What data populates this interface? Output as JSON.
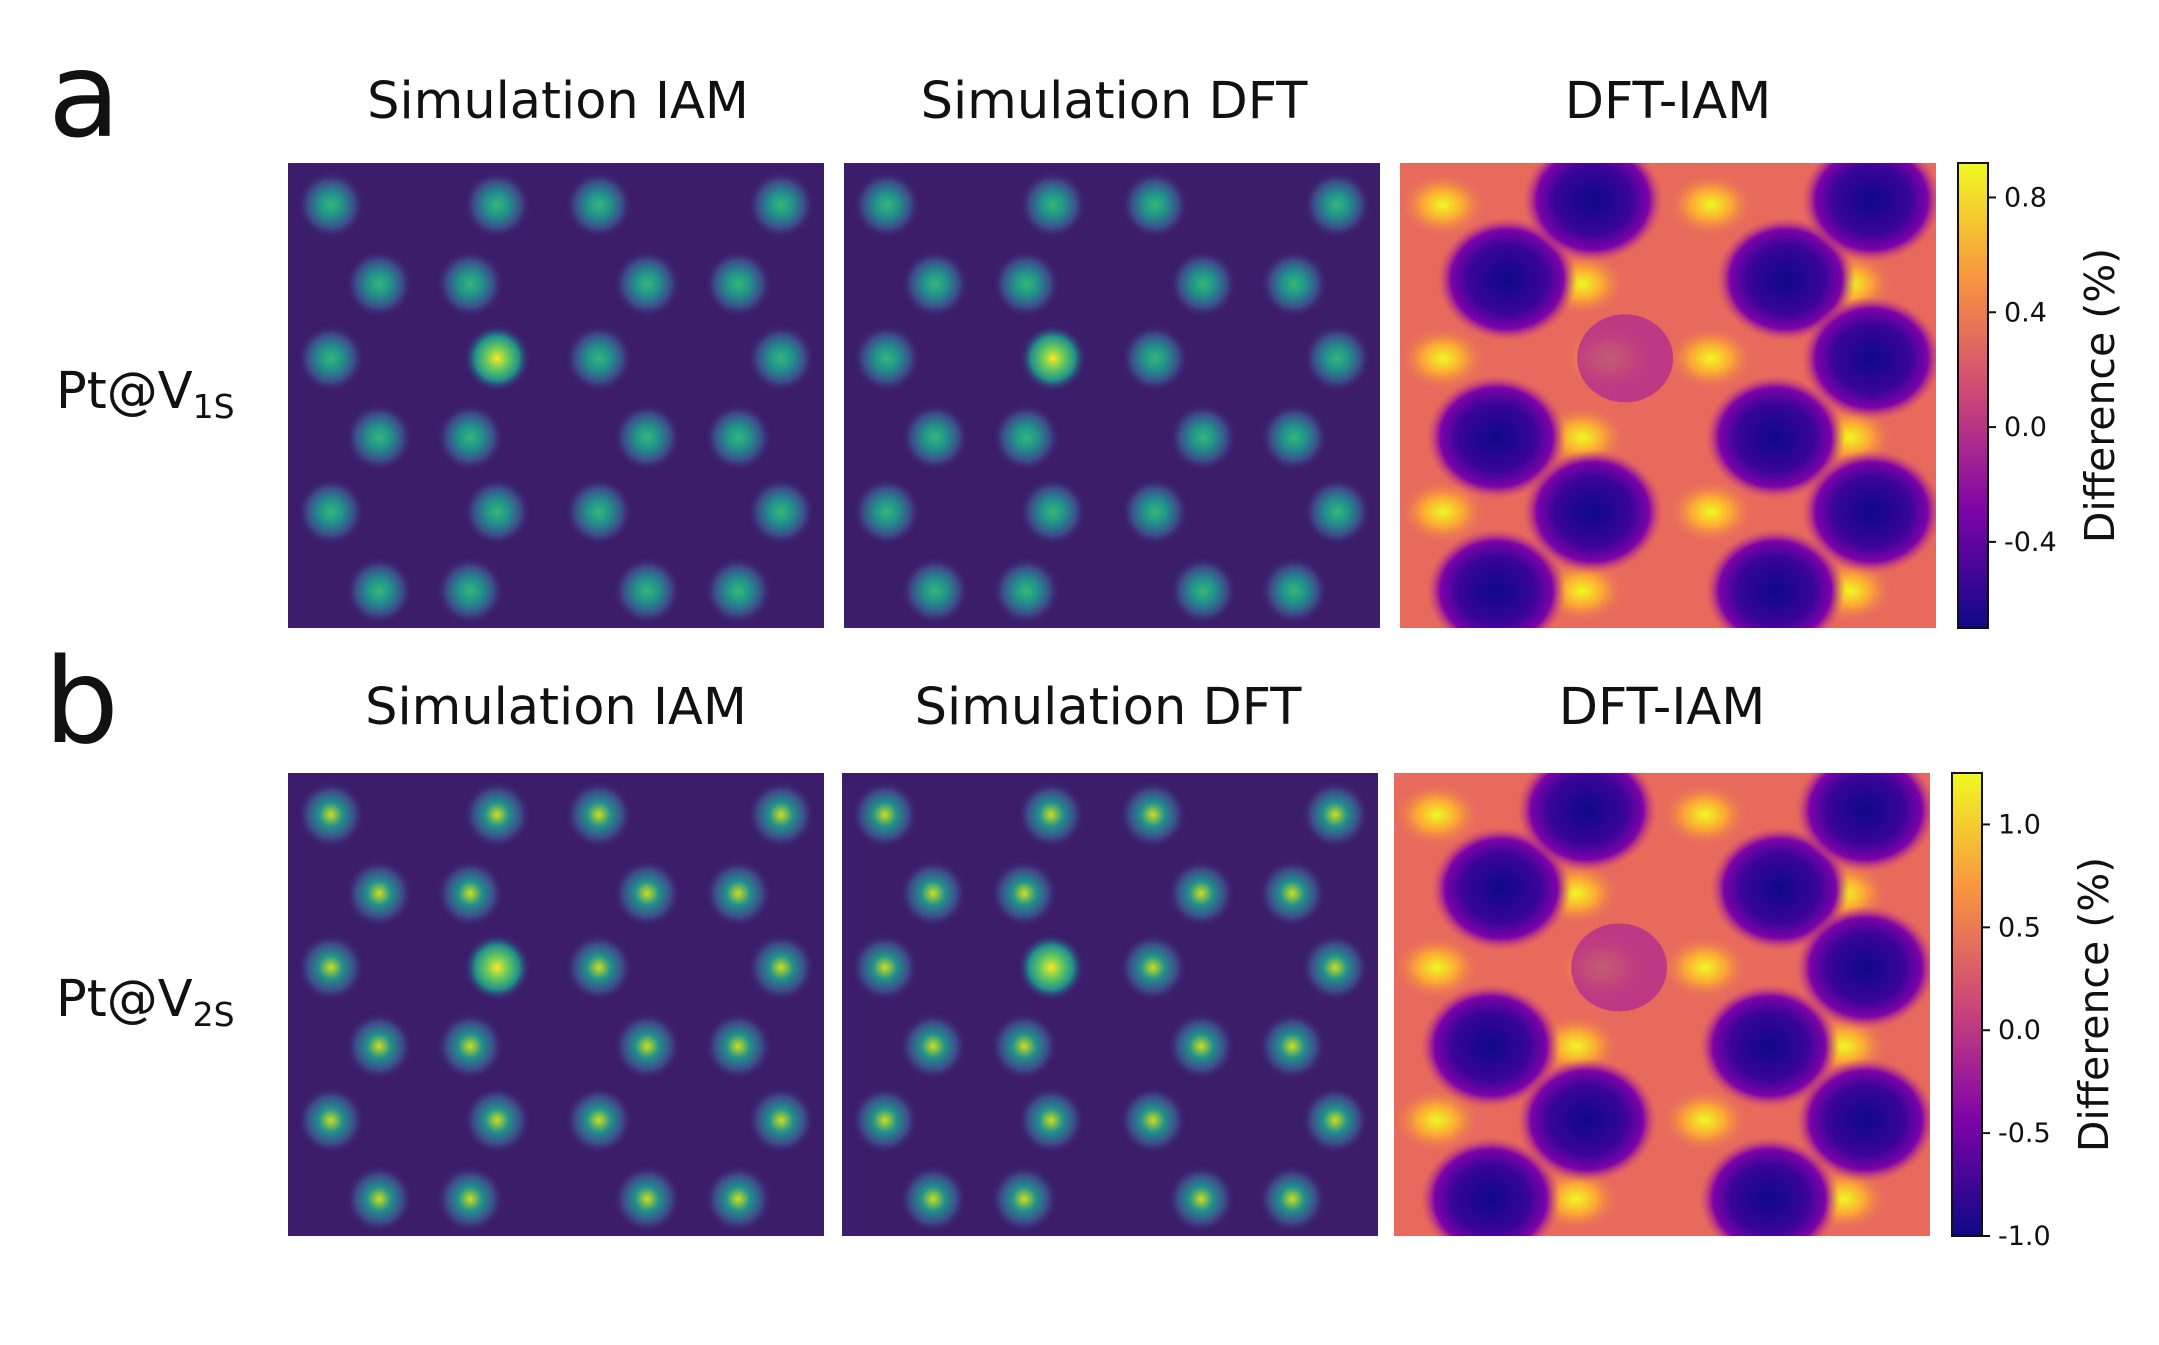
{
  "rows": [
    {
      "letter": "a",
      "label_main": "Pt@V",
      "label_sub": "1S",
      "titles": [
        "Simulation IAM",
        "Simulation DFT",
        "DFT-IAM"
      ],
      "colorbar": {
        "label": "Difference (%)",
        "ticks": [
          {
            "value": 0.8,
            "label": "0.8"
          },
          {
            "value": 0.4,
            "label": "0.4"
          },
          {
            "value": 0.0,
            "label": "0.0"
          },
          {
            "value": -0.4,
            "label": "-0.4"
          }
        ],
        "range": [
          -0.7,
          0.92
        ]
      }
    },
    {
      "letter": "b",
      "label_main": "Pt@V",
      "label_sub": "2S",
      "titles": [
        "Simulation IAM",
        "Simulation DFT",
        "DFT-IAM"
      ],
      "colorbar": {
        "label": "Difference (%)",
        "ticks": [
          {
            "value": 1.0,
            "label": "1.0"
          },
          {
            "value": 0.5,
            "label": "0.5"
          },
          {
            "value": 0.0,
            "label": "0.0"
          },
          {
            "value": -0.5,
            "label": "-0.5"
          },
          {
            "value": -1.0,
            "label": "-1.0"
          }
        ],
        "range": [
          -1.0,
          1.25
        ]
      }
    }
  ],
  "colors": {
    "viridis_bg": "#3b1d6c",
    "viridis_mid": "#21918c",
    "viridis_peak": "#fde725",
    "plasma_low": "#0d0887",
    "plasma_mid": "#cc4778",
    "plasma_high": "#f0f921"
  }
}
